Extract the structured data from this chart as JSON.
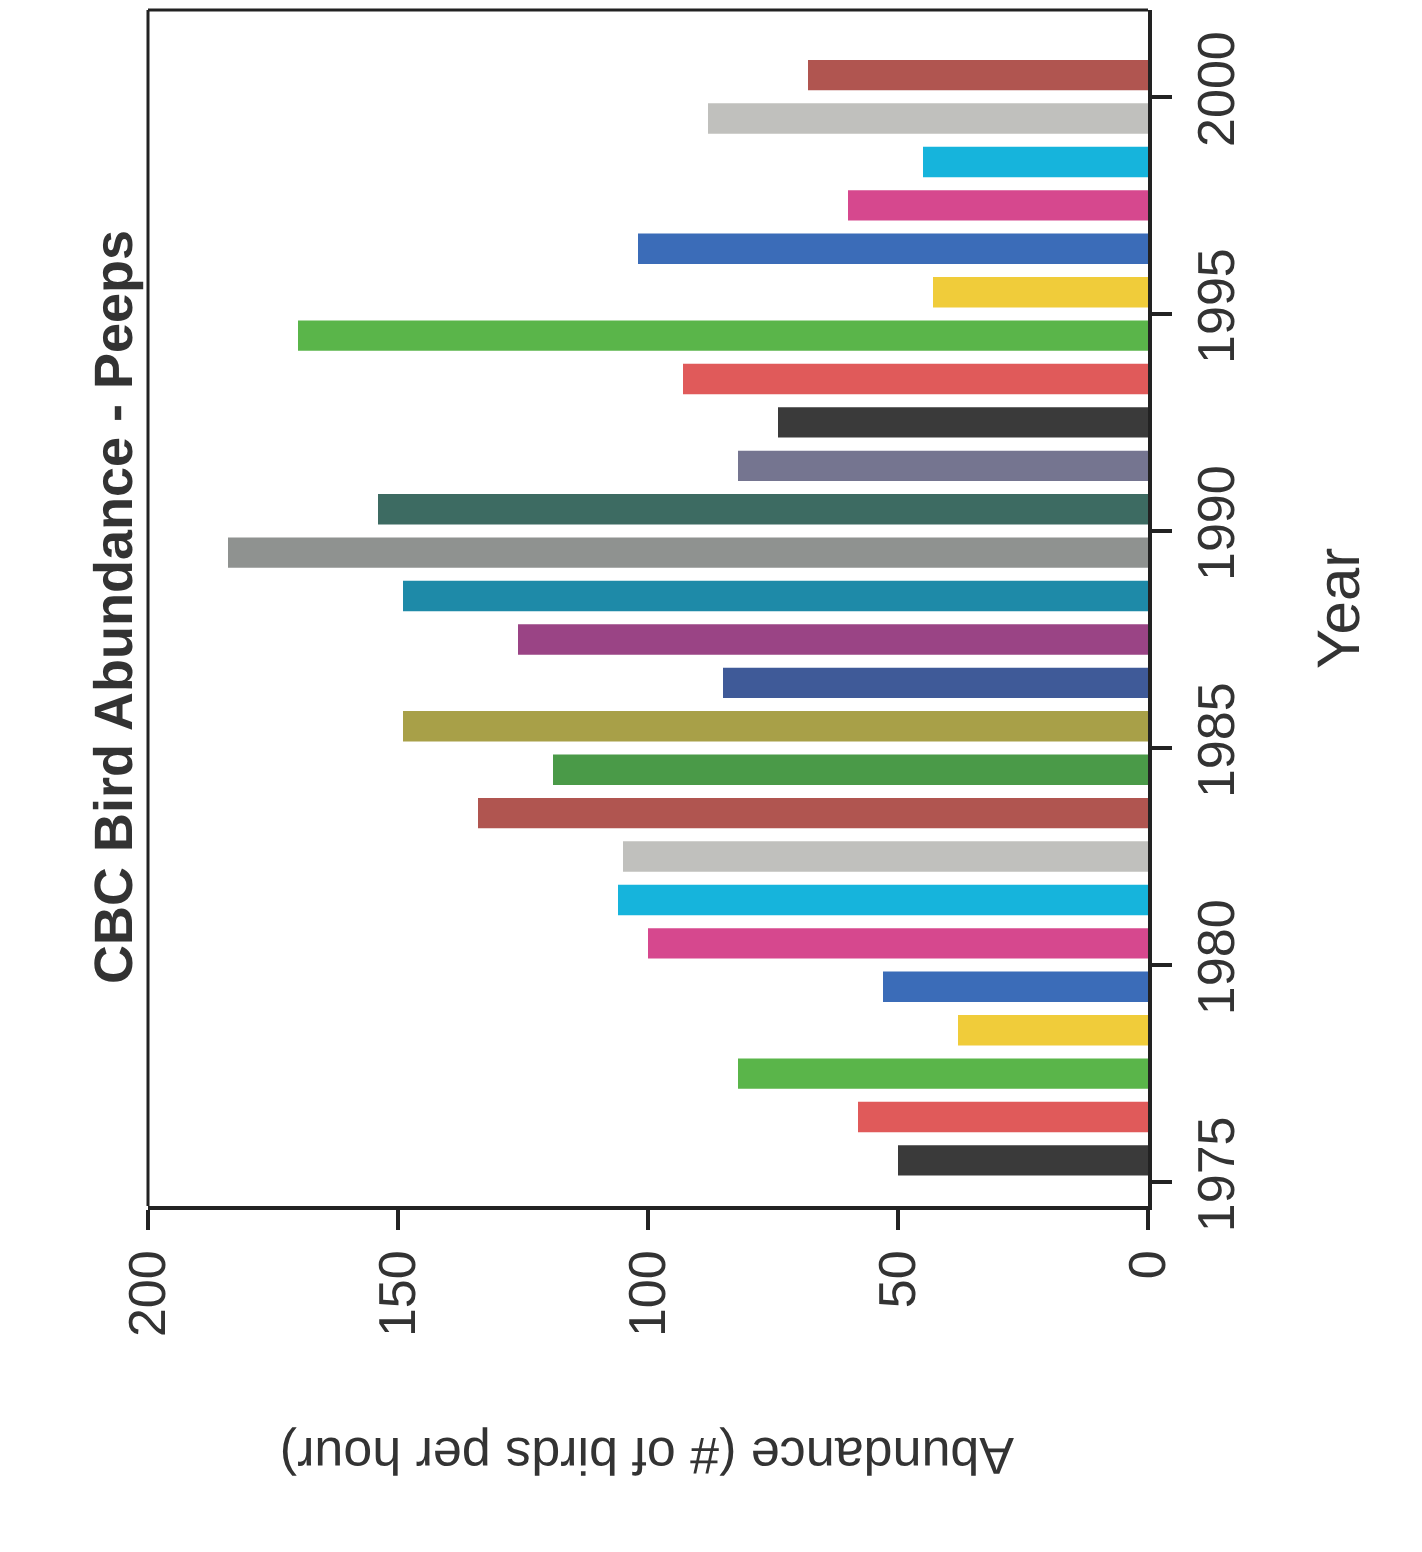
{
  "chart_data": {
    "type": "bar",
    "orientation": "horizontal",
    "title": "CBC Bird Abundance - Peeps",
    "xlabel": "Abundance (# of birds per hour)",
    "ylabel": "Year",
    "x": [
      1975.5,
      1976.5,
      1977.5,
      1978.5,
      1979.5,
      1980.5,
      1981.5,
      1982.5,
      1983.5,
      1984.5,
      1985.5,
      1986.5,
      1987.5,
      1988.5,
      1989.5,
      1990.5,
      1991.5,
      1992.5,
      1993.5,
      1994.5,
      1995.5,
      1996.5,
      1997.5,
      1998.5,
      1999.5,
      2000.5
    ],
    "values": [
      50,
      58,
      82,
      38,
      53,
      100,
      106,
      105,
      134,
      119,
      149,
      85,
      126,
      149,
      184,
      154,
      82,
      74,
      93,
      170,
      43,
      102,
      60,
      45,
      88,
      68
    ],
    "colors": [
      "#3a3a3a",
      "#e05a5a",
      "#5ab54a",
      "#f0cc3a",
      "#3b6cb8",
      "#d6488e",
      "#16b4dc",
      "#c0c0bd",
      "#b05550",
      "#4a9a48",
      "#a8a048",
      "#3f5a98",
      "#9a4485",
      "#1e8aa8",
      "#8f9290",
      "#3d6b62",
      "#757590",
      "#3a3a3a",
      "#e05a5a",
      "#5ab54a",
      "#f0cc3a",
      "#3b6cb8",
      "#d6488e",
      "#16b4dc",
      "#c0c0bd",
      "#b05550"
    ],
    "xlim": [
      200,
      0
    ],
    "xticks": [
      0,
      50,
      100,
      150,
      200
    ],
    "ylim": [
      1974.45,
      2002
    ],
    "yticks": [
      1975,
      1980,
      1985,
      1990,
      1995,
      2000
    ]
  }
}
